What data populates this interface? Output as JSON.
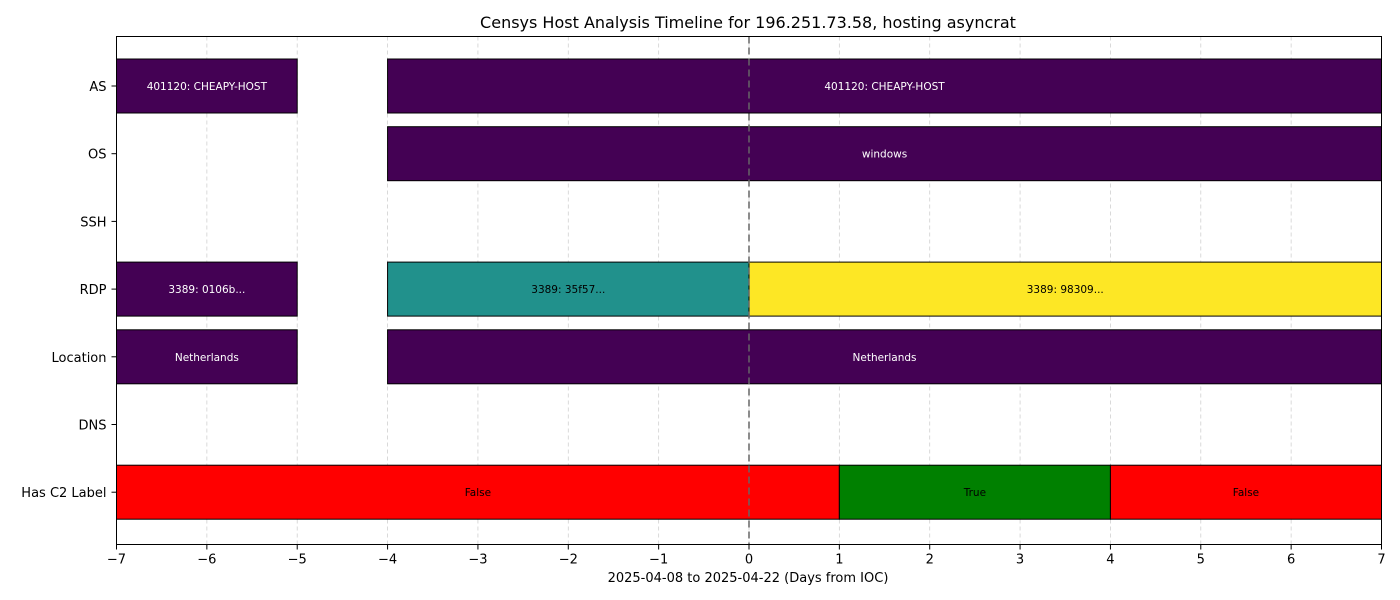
{
  "chart_data": {
    "type": "timeline",
    "title": "Censys Host Analysis Timeline for 196.251.73.58, hosting asyncrat",
    "xlabel": "2025-04-08 to 2025-04-22 (Days from IOC)",
    "ylabel": "",
    "xlim": [
      -7,
      7
    ],
    "xticks": [
      -7,
      -6,
      -5,
      -4,
      -3,
      -2,
      -1,
      0,
      1,
      2,
      3,
      4,
      5,
      6,
      7
    ],
    "xtick_labels": [
      "−7",
      "−6",
      "−5",
      "−4",
      "−3",
      "−2",
      "−1",
      "0",
      "1",
      "2",
      "3",
      "4",
      "5",
      "6",
      "7"
    ],
    "grid": "vertical-dashed",
    "ioc_marker_x": 0,
    "categories": [
      "AS",
      "OS",
      "SSH",
      "RDP",
      "Location",
      "DNS",
      "Has C2 Label"
    ],
    "segments": [
      {
        "category": "AS",
        "start": -7,
        "end": -5,
        "label": "401120: CHEAPY-HOST",
        "color": "#440154",
        "text_color": "#ffffff"
      },
      {
        "category": "AS",
        "start": -4,
        "end": 7,
        "label": "401120: CHEAPY-HOST",
        "color": "#440154",
        "text_color": "#ffffff"
      },
      {
        "category": "OS",
        "start": -4,
        "end": 7,
        "label": "windows",
        "color": "#440154",
        "text_color": "#ffffff"
      },
      {
        "category": "RDP",
        "start": -7,
        "end": -5,
        "label": "3389: 0106b...",
        "color": "#440154",
        "text_color": "#ffffff"
      },
      {
        "category": "RDP",
        "start": -4,
        "end": 0,
        "label": "3389: 35f57...",
        "color": "#21918c",
        "text_color": "#000000"
      },
      {
        "category": "RDP",
        "start": 0,
        "end": 7,
        "label": "3389: 98309...",
        "color": "#fde725",
        "text_color": "#000000"
      },
      {
        "category": "Location",
        "start": -7,
        "end": -5,
        "label": "Netherlands",
        "color": "#440154",
        "text_color": "#ffffff"
      },
      {
        "category": "Location",
        "start": -4,
        "end": 7,
        "label": "Netherlands",
        "color": "#440154",
        "text_color": "#ffffff"
      },
      {
        "category": "Has C2 Label",
        "start": -7,
        "end": 1,
        "label": "False",
        "color": "#ff0000",
        "text_color": "#000000"
      },
      {
        "category": "Has C2 Label",
        "start": 1,
        "end": 4,
        "label": "True",
        "color": "#008000",
        "text_color": "#000000"
      },
      {
        "category": "Has C2 Label",
        "start": 4,
        "end": 7,
        "label": "False",
        "color": "#ff0000",
        "text_color": "#000000"
      }
    ]
  }
}
